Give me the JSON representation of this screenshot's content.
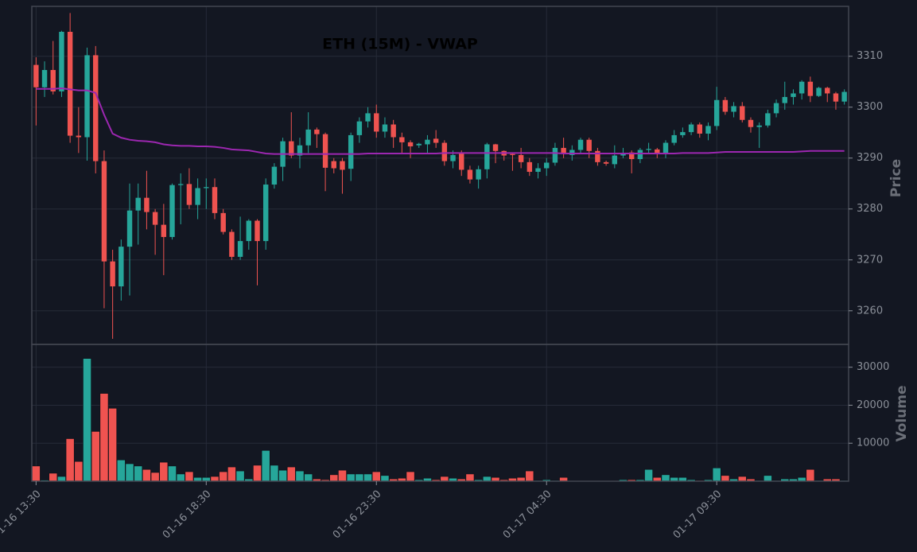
{
  "chart_data": {
    "type": "candlestick",
    "title": "ETH (15M) - VWAP",
    "ylabel": "Price",
    "volume_ylabel": "Volume",
    "up_color": "#26a69a",
    "down_color": "#ef5350",
    "vwap_color": "#9c27b0",
    "grid": true,
    "xlim": [
      -0.5,
      95.5
    ],
    "xticks": [
      {
        "value": 0,
        "label": "01-16 13:30"
      },
      {
        "value": 20,
        "label": "01-16 18:30"
      },
      {
        "value": 40,
        "label": "01-16 23:30"
      },
      {
        "value": 60,
        "label": "01-17 04:30"
      },
      {
        "value": 80,
        "label": "01-17 09:30"
      }
    ],
    "ylim": [
      3253.4,
      3319.8
    ],
    "yticks": [
      3260,
      3270,
      3280,
      3290,
      3300,
      3310
    ],
    "volume_ylim": [
      0,
      36000
    ],
    "volume_yticks": [
      10000,
      20000,
      30000
    ],
    "open": [
      3308.3,
      3303.9,
      3307.3,
      3303.1,
      3314.8,
      3294.4,
      3294.1,
      3310.2,
      3289.4,
      3269.7,
      3264.8,
      3272.6,
      3279.7,
      3282.2,
      3279.4,
      3276.9,
      3274.5,
      3284.7,
      3284.9,
      3280.8,
      3284.1,
      3284.3,
      3279.2,
      3275.5,
      3270.6,
      3273.7,
      3277.7,
      3273.7,
      3284.8,
      3288.3,
      3293.3,
      3290.5,
      3292.5,
      3295.6,
      3294.7,
      3289.4,
      3289.4,
      3287.9,
      3294.5,
      3297.2,
      3298.8,
      3295.2,
      3296.6,
      3294.1,
      3293.1,
      3292.5,
      3292.7,
      3293.8,
      3293.0,
      3289.4,
      3290.9,
      3287.7,
      3285.8,
      3287.8,
      3292.7,
      3291.4,
      3290.8,
      3290.6,
      3289.2,
      3287.3,
      3288.0,
      3289.1,
      3292.0,
      3290.6,
      3291.6,
      3293.6,
      3291.4,
      3289.2,
      3288.8,
      3290.5,
      3291.1,
      3289.8,
      3291.6,
      3291.7,
      3290.9,
      3293.0,
      3294.5,
      3295.1,
      3296.6,
      3294.8,
      3296.3,
      3301.4,
      3299.1,
      3300.2,
      3297.5,
      3296.1,
      3296.4,
      3298.8,
      3300.8,
      3302.0,
      3302.7,
      3305.0,
      3302.2,
      3303.8,
      3302.7,
      3301.1
    ],
    "high": [
      3309.8,
      3309.0,
      3313.0,
      3315.0,
      3318.5,
      3300.0,
      3311.7,
      3312.0,
      3291.5,
      3272.0,
      3274.0,
      3285.0,
      3285.0,
      3287.5,
      3280.0,
      3281.0,
      3285.0,
      3287.0,
      3288.0,
      3286.0,
      3286.0,
      3286.0,
      3280.0,
      3276.0,
      3278.5,
      3278.0,
      3278.0,
      3286.0,
      3289.0,
      3294.0,
      3299.0,
      3294.0,
      3299.0,
      3296.0,
      3295.0,
      3290.0,
      3290.0,
      3295.0,
      3298.0,
      3300.0,
      3300.5,
      3298.0,
      3297.5,
      3295.0,
      3293.5,
      3293.0,
      3294.5,
      3295.5,
      3293.5,
      3291.5,
      3291.5,
      3288.5,
      3288.5,
      3293.0,
      3292.8,
      3291.5,
      3291.0,
      3292.0,
      3290.0,
      3289.0,
      3290.0,
      3293.0,
      3294.0,
      3292.5,
      3294.0,
      3294.0,
      3292.0,
      3289.5,
      3292.5,
      3292.0,
      3291.5,
      3292.0,
      3293.0,
      3292.0,
      3293.5,
      3295.5,
      3296.0,
      3297.0,
      3297.0,
      3297.0,
      3304.0,
      3302.0,
      3301.0,
      3301.0,
      3298.0,
      3297.0,
      3299.5,
      3301.5,
      3305.0,
      3303.5,
      3305.3,
      3306.0,
      3304.0,
      3304.0,
      3303.0,
      3303.5
    ],
    "low": [
      3296.4,
      3302.0,
      3302.5,
      3302.0,
      3293.0,
      3291.0,
      3289.5,
      3287.0,
      3260.5,
      3254.5,
      3262.0,
      3263.0,
      3273.0,
      3276.0,
      3271.0,
      3267.0,
      3274.0,
      3277.0,
      3280.0,
      3278.0,
      3280.0,
      3278.0,
      3275.0,
      3270.0,
      3270.0,
      3272.0,
      3265.0,
      3272.0,
      3284.0,
      3285.5,
      3290.0,
      3288.0,
      3291.0,
      3292.0,
      3283.5,
      3287.0,
      3283.0,
      3285.5,
      3293.0,
      3296.0,
      3294.0,
      3294.0,
      3292.0,
      3291.0,
      3290.0,
      3292.0,
      3291.0,
      3292.0,
      3288.5,
      3288.0,
      3286.5,
      3285.0,
      3284.0,
      3286.0,
      3289.0,
      3289.5,
      3287.5,
      3288.0,
      3286.5,
      3286.0,
      3286.5,
      3288.5,
      3290.0,
      3289.5,
      3291.0,
      3290.0,
      3288.5,
      3288.5,
      3288.0,
      3290.0,
      3287.0,
      3289.0,
      3291.0,
      3290.0,
      3290.0,
      3292.5,
      3294.0,
      3294.5,
      3294.0,
      3293.5,
      3295.5,
      3298.5,
      3298.0,
      3297.0,
      3295.0,
      3292.0,
      3296.0,
      3298.0,
      3299.5,
      3300.5,
      3301.5,
      3301.0,
      3302.0,
      3301.0,
      3299.5,
      3300.5
    ],
    "close": [
      3303.9,
      3307.3,
      3303.1,
      3314.8,
      3294.4,
      3294.1,
      3310.2,
      3289.4,
      3269.7,
      3264.8,
      3272.6,
      3279.7,
      3282.2,
      3279.4,
      3276.9,
      3274.5,
      3284.7,
      3284.9,
      3280.8,
      3284.1,
      3284.3,
      3279.2,
      3275.5,
      3270.6,
      3273.7,
      3277.7,
      3273.7,
      3284.8,
      3288.3,
      3293.3,
      3290.5,
      3292.5,
      3295.6,
      3294.7,
      3288.1,
      3288.0,
      3287.7,
      3294.5,
      3297.2,
      3298.8,
      3295.2,
      3296.6,
      3294.1,
      3293.1,
      3292.3,
      3292.8,
      3293.6,
      3293.0,
      3289.4,
      3290.6,
      3287.7,
      3285.8,
      3287.8,
      3292.7,
      3291.4,
      3290.5,
      3290.6,
      3289.2,
      3287.3,
      3288.0,
      3289.1,
      3292.0,
      3290.9,
      3291.6,
      3293.6,
      3291.4,
      3289.2,
      3288.9,
      3290.5,
      3290.8,
      3289.8,
      3291.6,
      3291.8,
      3290.9,
      3293.0,
      3294.5,
      3295.1,
      3296.6,
      3294.8,
      3296.3,
      3301.4,
      3299.1,
      3300.2,
      3297.5,
      3296.1,
      3296.4,
      3298.8,
      3300.8,
      3302.0,
      3302.7,
      3305.0,
      3302.2,
      3303.8,
      3302.7,
      3301.1,
      3303.0
    ],
    "volume": [
      4000,
      300,
      2100,
      1250,
      11200,
      5200,
      32300,
      13100,
      23100,
      19200,
      5600,
      4600,
      4000,
      3100,
      2300,
      5000,
      4000,
      1900,
      2500,
      1000,
      1000,
      1250,
      2500,
      3750,
      2700,
      600,
      4200,
      8100,
      4200,
      2900,
      3750,
      2700,
      1900,
      600,
      400,
      1700,
      2900,
      1900,
      1900,
      1900,
      2500,
      1500,
      600,
      800,
      2500,
      400,
      800,
      400,
      1250,
      800,
      600,
      1900,
      400,
      1250,
      1000,
      400,
      800,
      1000,
      2700,
      200,
      400,
      200,
      1000,
      100,
      100,
      100,
      100,
      100,
      100,
      400,
      400,
      400,
      3100,
      1000,
      1700,
      1000,
      1000,
      400,
      200,
      400,
      3500,
      1500,
      600,
      1250,
      600,
      200,
      1500,
      200,
      600,
      600,
      1000,
      3100,
      200,
      600,
      600,
      200
    ],
    "vwap": [
      3303.6,
      3303.6,
      3303.6,
      3303.7,
      3303.5,
      3303.3,
      3303.3,
      3302.8,
      3298.5,
      3294.8,
      3294.0,
      3293.6,
      3293.4,
      3293.3,
      3293.1,
      3292.7,
      3292.5,
      3292.4,
      3292.4,
      3292.3,
      3292.3,
      3292.2,
      3292.0,
      3291.7,
      3291.6,
      3291.5,
      3291.2,
      3290.9,
      3290.8,
      3290.8,
      3290.8,
      3290.8,
      3290.8,
      3290.8,
      3290.8,
      3290.8,
      3290.8,
      3290.8,
      3290.8,
      3290.9,
      3290.9,
      3290.9,
      3290.9,
      3290.9,
      3290.9,
      3290.9,
      3290.9,
      3290.9,
      3291.0,
      3291.0,
      3291.0,
      3291.0,
      3291.0,
      3291.0,
      3291.0,
      3291.0,
      3291.0,
      3291.0,
      3291.0,
      3291.0,
      3291.0,
      3291.0,
      3290.9,
      3290.9,
      3290.9,
      3290.9,
      3290.9,
      3290.9,
      3290.9,
      3290.9,
      3290.9,
      3290.9,
      3290.9,
      3290.9,
      3290.9,
      3290.9,
      3291.0,
      3291.0,
      3291.0,
      3291.0,
      3291.1,
      3291.2,
      3291.2,
      3291.2,
      3291.2,
      3291.2,
      3291.2,
      3291.2,
      3291.2,
      3291.2,
      3291.3,
      3291.4,
      3291.4,
      3291.4,
      3291.4,
      3291.4
    ]
  }
}
